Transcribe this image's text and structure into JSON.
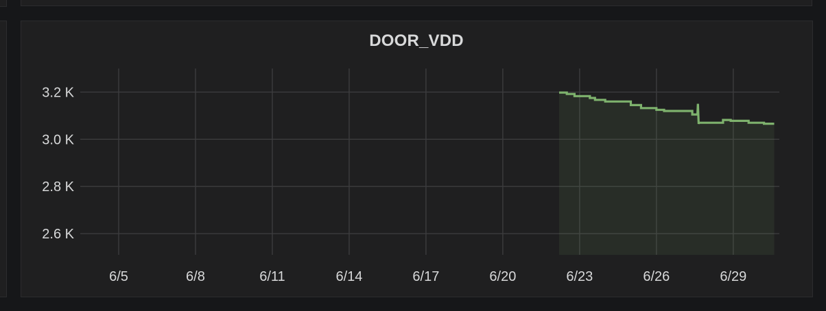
{
  "chart_data": {
    "type": "area",
    "title": "DOOR_VDD",
    "xlabel": "",
    "ylabel": "",
    "x_tick_labels": [
      "6/5",
      "6/8",
      "6/11",
      "6/14",
      "6/17",
      "6/20",
      "6/23",
      "6/26",
      "6/29"
    ],
    "y_tick_labels": [
      "3.2 K",
      "3.0 K",
      "2.8 K",
      "2.6 K"
    ],
    "y_ticks": [
      3200,
      3000,
      2800,
      2600
    ],
    "ylim": [
      2510,
      3300
    ],
    "xlim_days": [
      3.5,
      30.8
    ],
    "x_tick_days": [
      5,
      8,
      11,
      14,
      17,
      20,
      23,
      26,
      29
    ],
    "grid": true,
    "legend": "none",
    "series": [
      {
        "color": "#7eb26d",
        "fill_color": "#7eb26d",
        "x": [
          22.2,
          22.5,
          22.5,
          22.8,
          22.8,
          23.4,
          23.4,
          23.6,
          23.6,
          24.0,
          24.0,
          25.0,
          25.0,
          25.4,
          25.4,
          26.0,
          26.0,
          26.3,
          26.3,
          27.4,
          27.4,
          27.6,
          27.62,
          27.65,
          27.66,
          28.6,
          28.6,
          28.9,
          28.9,
          29.6,
          29.6,
          30.2,
          30.2,
          30.6
        ],
        "y": [
          3198,
          3198,
          3192,
          3192,
          3183,
          3183,
          3175,
          3175,
          3167,
          3167,
          3160,
          3160,
          3145,
          3145,
          3132,
          3132,
          3125,
          3125,
          3120,
          3120,
          3105,
          3105,
          3150,
          3065,
          3070,
          3070,
          3082,
          3082,
          3078,
          3078,
          3070,
          3070,
          3066,
          3066
        ]
      }
    ]
  }
}
